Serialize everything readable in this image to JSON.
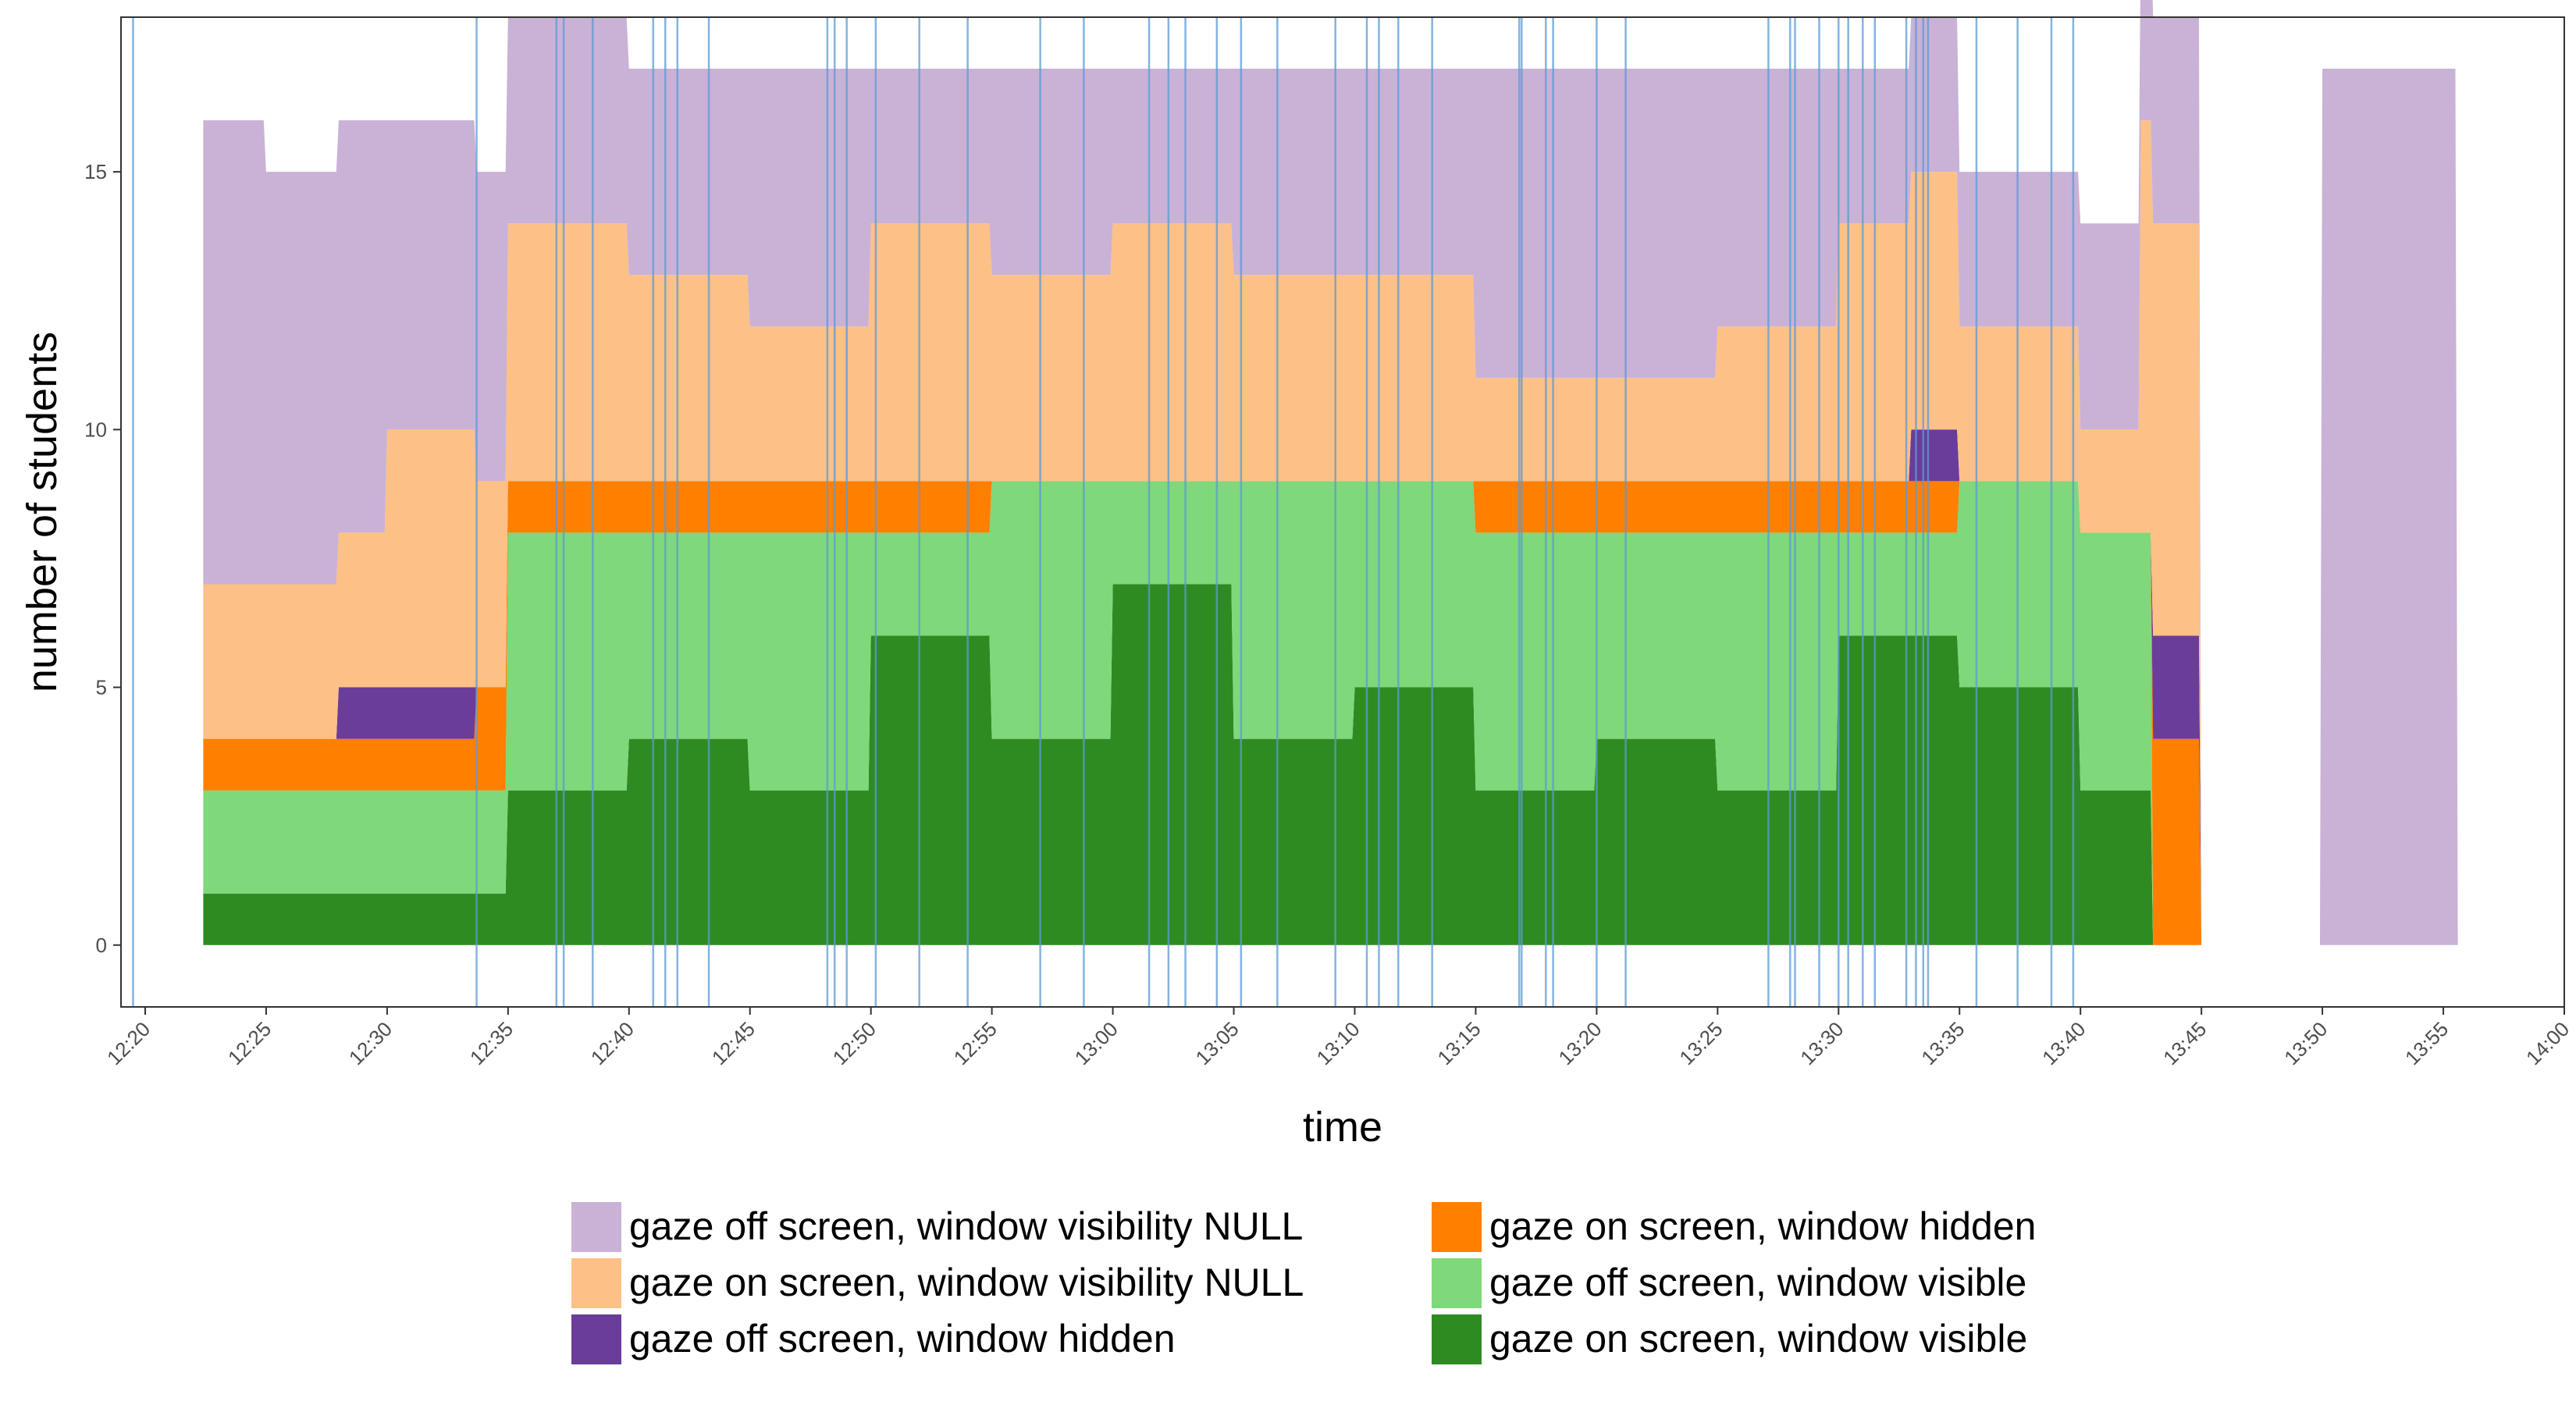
{
  "chart_data": {
    "type": "area",
    "xlabel": "time",
    "ylabel": "number of students",
    "x_ticks": [
      "12:20",
      "12:25",
      "12:30",
      "12:35",
      "12:40",
      "12:45",
      "12:50",
      "12:55",
      "13:00",
      "13:05",
      "13:10",
      "13:15",
      "13:20",
      "13:25",
      "13:30",
      "13:35",
      "13:40",
      "13:45",
      "13:50",
      "13:55",
      "14:00"
    ],
    "xlim": [
      "12:19",
      "14:00"
    ],
    "y_ticks": [
      "0",
      "5",
      "10",
      "15"
    ],
    "ylim": [
      -1.2,
      18
    ],
    "grid": false,
    "legend_position": "bottom",
    "event_marker_times": [
      "12:19.5",
      "12:33.7",
      "12:37.0",
      "12:37.3",
      "12:38.5",
      "12:41.0",
      "12:41.5",
      "12:42.0",
      "12:43.3",
      "12:48.2",
      "12:48.5",
      "12:49.0",
      "12:50.2",
      "12:52.0",
      "12:54.0",
      "12:57.0",
      "12:58.8",
      "13:01.5",
      "13:02.3",
      "13:03.0",
      "13:04.3",
      "13:05.3",
      "13:06.8",
      "13:09.2",
      "13:10.5",
      "13:11.0",
      "13:11.8",
      "13:13.2",
      "13:16.8",
      "13:16.9",
      "13:17.9",
      "13:18.2",
      "13:20.0",
      "13:21.2",
      "13:27.1",
      "13:28.0",
      "13:28.2",
      "13:29.2",
      "13:30.0",
      "13:30.4",
      "13:31.0",
      "13:31.5",
      "13:32.8",
      "13:33.2",
      "13:33.5",
      "13:33.7",
      "13:35.7",
      "13:37.4",
      "13:38.8",
      "13:39.7"
    ],
    "series": [
      {
        "name": "gaze off screen, window visibility NULL",
        "color": "#c9b2d6",
        "x": [
          "12:22.4",
          "12:25",
          "12:30",
          "12:35",
          "12:40",
          "12:45",
          "12:50",
          "12:55",
          "13:00",
          "13:05",
          "13:10",
          "13:15",
          "13:20",
          "13:25",
          "13:30",
          "13:35",
          "13:40",
          "13:45",
          "13:50",
          "13:55.6"
        ],
        "values": [
          9,
          8,
          6,
          4,
          4,
          5,
          3,
          4,
          3,
          4,
          4,
          6,
          6,
          5,
          3,
          3,
          4,
          0,
          17,
          17
        ]
      },
      {
        "name": "gaze on screen, window visibility NULL",
        "color": "#fdc086",
        "x": [
          "12:22.4",
          "12:25",
          "12:30",
          "12:33.7",
          "12:35",
          "12:40",
          "12:45",
          "12:50",
          "12:55",
          "13:00",
          "13:05",
          "13:10",
          "13:15",
          "13:20",
          "13:25",
          "13:30",
          "13:35",
          "13:40",
          "13:42.5",
          "13:45"
        ],
        "values": [
          3,
          3,
          5,
          4,
          5,
          4,
          3,
          5,
          4,
          5,
          4,
          4,
          2,
          2,
          3,
          5,
          3,
          2,
          8,
          0
        ]
      },
      {
        "name": "gaze off screen, window hidden",
        "color": "#6a3d9a",
        "x": [
          "12:22.4",
          "12:28",
          "12:30",
          "12:32",
          "12:33.7",
          "12:35",
          "12:40",
          "12:45",
          "12:50",
          "12:55",
          "13:00",
          "13:05",
          "13:10",
          "13:15",
          "13:20",
          "13:25",
          "13:30",
          "13:33",
          "13:35",
          "13:40",
          "13:43",
          "13:45"
        ],
        "values": [
          0,
          1,
          1,
          1,
          0,
          0,
          0,
          0,
          0,
          0,
          0,
          0,
          0,
          0,
          0,
          0,
          0,
          1,
          0,
          0,
          2,
          0
        ]
      },
      {
        "name": "gaze on screen, window hidden",
        "color": "#ff7f00",
        "x": [
          "12:22.4",
          "12:25",
          "12:30",
          "12:33.7",
          "12:35",
          "12:40",
          "12:45",
          "12:50",
          "12:55",
          "13:00",
          "13:05",
          "13:10",
          "13:15",
          "13:20",
          "13:25",
          "13:30",
          "13:35",
          "13:40",
          "13:43",
          "13:45"
        ],
        "values": [
          1,
          1,
          1,
          2,
          1,
          1,
          1,
          1,
          0,
          0,
          0,
          0,
          1,
          1,
          1,
          1,
          0,
          0,
          4,
          0
        ]
      },
      {
        "name": "gaze off screen, window visible",
        "color": "#7fd87a",
        "x": [
          "12:22.4",
          "12:25",
          "12:30",
          "12:33.7",
          "12:35",
          "12:40",
          "12:45",
          "12:50",
          "12:55",
          "13:00",
          "13:05",
          "13:10",
          "13:15",
          "13:20",
          "13:25",
          "13:30",
          "13:35",
          "13:40",
          "13:43",
          "13:45"
        ],
        "values": [
          2,
          2,
          2,
          2,
          5,
          4,
          5,
          2,
          5,
          2,
          5,
          4,
          5,
          4,
          5,
          2,
          4,
          5,
          0,
          0
        ]
      },
      {
        "name": "gaze on screen, window visible",
        "color": "#2e8b22",
        "x": [
          "12:22.4",
          "12:25",
          "12:30",
          "12:33.7",
          "12:35",
          "12:40",
          "12:45",
          "12:50",
          "12:55",
          "13:00",
          "13:05",
          "13:10",
          "13:15",
          "13:20",
          "13:25",
          "13:30",
          "13:35",
          "13:40",
          "13:43",
          "13:45"
        ],
        "values": [
          1,
          1,
          1,
          1,
          3,
          4,
          3,
          6,
          4,
          7,
          4,
          5,
          3,
          4,
          3,
          6,
          5,
          3,
          0,
          0
        ]
      }
    ]
  },
  "legend": {
    "items": [
      {
        "label": "gaze off screen, window visibility NULL",
        "color": "#c9b2d6"
      },
      {
        "label": "gaze on screen, window visibility NULL",
        "color": "#fdc086"
      },
      {
        "label": "gaze off screen, window hidden",
        "color": "#6a3d9a"
      },
      {
        "label": "gaze on screen, window hidden",
        "color": "#ff7f00"
      },
      {
        "label": "gaze off screen, window visible",
        "color": "#7fd87a"
      },
      {
        "label": "gaze on screen, window visible",
        "color": "#2e8b22"
      }
    ]
  },
  "marker_color": "#5b9bd5"
}
